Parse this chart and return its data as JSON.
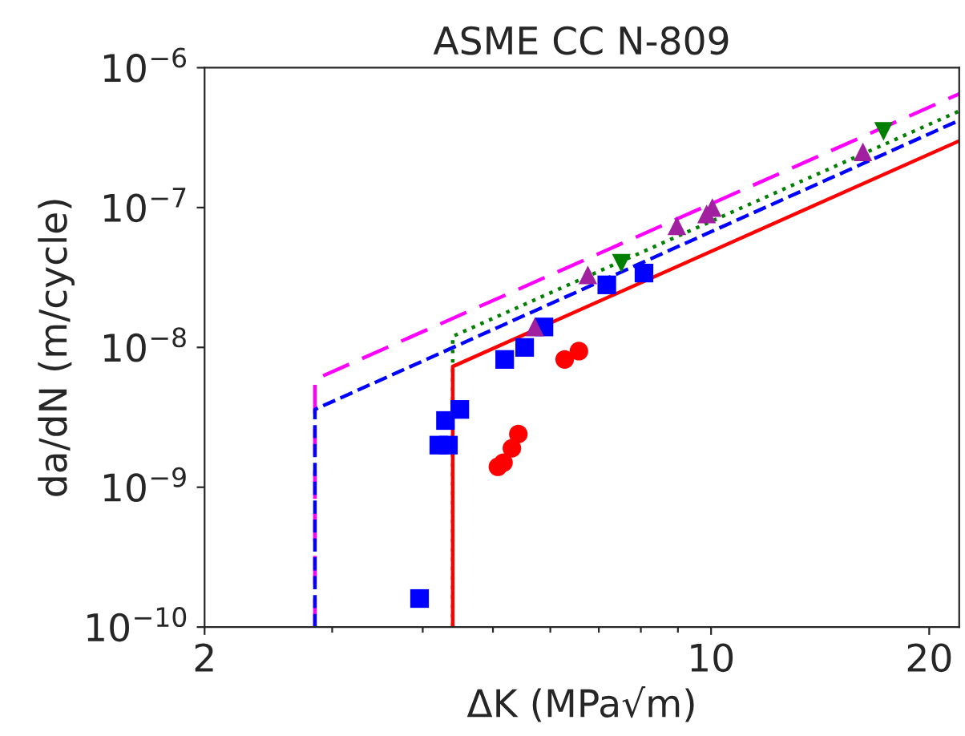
{
  "chart_data": {
    "type": "line",
    "title": "ASME CC N-809",
    "xlabel": "ΔK (MPa√m)",
    "ylabel": "da/dN (m/cycle)",
    "log": "xy",
    "grid": false,
    "xlim": [
      2,
      22
    ],
    "ylim": [
      1e-10,
      1e-06
    ],
    "xticks": [
      2,
      {
        "value": 3,
        "label": null
      },
      {
        "value": 4,
        "label": null
      },
      {
        "value": 5,
        "label": null
      },
      {
        "value": 6,
        "label": null
      },
      {
        "value": 7,
        "label": null
      },
      {
        "value": 8,
        "label": null
      },
      {
        "value": 9,
        "label": null
      },
      10,
      20
    ],
    "yticks": [
      {
        "value": 1e-10,
        "label": "10$^{−10}$"
      },
      {
        "value": 1e-09,
        "label": "10$^{−9}$"
      },
      {
        "value": 1e-08,
        "label": "10$^{−8}$"
      },
      {
        "value": 1e-07,
        "label": "10$^{−7}$"
      },
      {
        "value": 1e-06,
        "label": "10$^{−6}$"
      }
    ],
    "series": [
      {
        "color": "#ff00ff",
        "line_style": "dashed",
        "marker": "none",
        "x": [
          2.84,
          2.84,
          22
        ],
        "values": [
          1e-10,
          5.9e-09,
          6.5e-07
        ]
      },
      {
        "color": "#0000ff",
        "line_style": "dashed",
        "marker": "none",
        "x": [
          2.84,
          2.84,
          22
        ],
        "values": [
          1e-10,
          3.6e-09,
          4.2e-07
        ]
      },
      {
        "color": "#008000",
        "line_style": "dotted",
        "marker": "none",
        "x": [
          4.4,
          4.4,
          22
        ],
        "values": [
          1e-10,
          1.2e-08,
          4.9e-07
        ]
      },
      {
        "color": "#ff0000",
        "line_style": "solid",
        "marker": "none",
        "x": [
          4.4,
          4.4,
          22
        ],
        "values": [
          1e-10,
          7.3e-09,
          3e-07
        ]
      },
      {
        "type": "scatter",
        "color": "#0000ff",
        "marker": "square",
        "x": [
          3.96,
          4.21,
          4.34,
          4.3,
          4.5,
          5.19,
          5.53,
          5.88,
          7.18,
          8.08
        ],
        "values": [
          1.6e-10,
          2e-09,
          2e-09,
          3e-09,
          3.6e-09,
          8.2e-09,
          1e-08,
          1.4e-08,
          2.8e-08,
          3.4e-08
        ]
      },
      {
        "type": "scatter",
        "color": "#ff0000",
        "marker": "circle",
        "x": [
          5.08,
          5.17,
          5.31,
          5.42,
          6.28,
          6.57
        ],
        "values": [
          1.4e-09,
          1.5e-09,
          1.9e-09,
          2.4e-09,
          8.2e-09,
          9.4e-09
        ]
      },
      {
        "type": "scatter",
        "color": "#a020a0",
        "marker": "triangle",
        "x": [
          5.71,
          6.76,
          8.97,
          9.86,
          10.04,
          16.2
        ],
        "values": [
          1.4e-08,
          3.3e-08,
          7.4e-08,
          9e-08,
          1e-07,
          2.5e-07
        ]
      },
      {
        "type": "scatter",
        "color": "#008000",
        "marker": "triangle_down",
        "x": [
          7.52,
          17.3
        ],
        "values": [
          4e-08,
          3.5e-07
        ]
      }
    ]
  }
}
